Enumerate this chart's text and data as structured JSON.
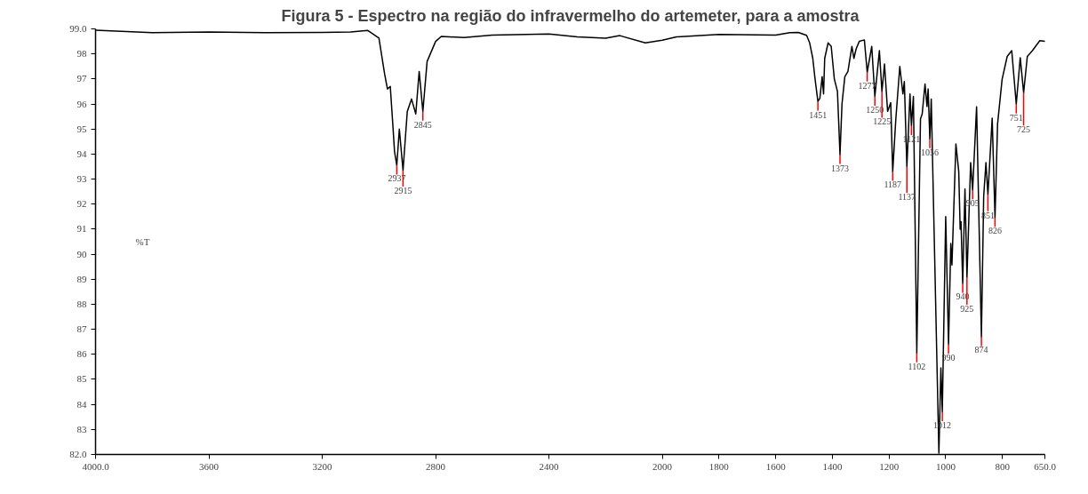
{
  "chart_data": {
    "type": "line",
    "title": "Figura 5 - Espectro na região do infravermelho do artemeter, para a amostra",
    "ylabel": "%T",
    "xlim": [
      4000,
      650
    ],
    "ylim": [
      82,
      99
    ],
    "xticks": [
      {
        "value": 4000,
        "label": "4000.0"
      },
      3600,
      3200,
      2800,
      2400,
      2000,
      1800,
      1600,
      1400,
      1200,
      1000,
      800,
      {
        "value": 650,
        "label": "650.0"
      }
    ],
    "yticks": [
      {
        "value": 82,
        "label": "82.0"
      },
      83,
      84,
      85,
      86,
      87,
      88,
      89,
      90,
      91,
      92,
      93,
      94,
      95,
      96,
      97,
      98,
      {
        "value": 99,
        "label": "99.0"
      }
    ],
    "grid": false,
    "marker": "none",
    "line_style": "solid",
    "series": [
      {
        "color": "#000000",
        "x": [
          4000,
          3800,
          3600,
          3400,
          3200,
          3100,
          3040,
          3000,
          2980,
          2970,
          2960,
          2950,
          2945,
          2937,
          2928,
          2915,
          2900,
          2885,
          2870,
          2858,
          2845,
          2830,
          2800,
          2780,
          2700,
          2600,
          2400,
          2300,
          2200,
          2150,
          2060,
          2000,
          1950,
          1800,
          1600,
          1550,
          1520,
          1491,
          1480,
          1469,
          1462,
          1451,
          1444,
          1436,
          1431,
          1427,
          1415,
          1404,
          1393,
          1382,
          1373,
          1366,
          1356,
          1345,
          1331,
          1324,
          1316,
          1305,
          1287,
          1277,
          1261,
          1250,
          1234,
          1225,
          1216,
          1205,
          1194,
          1187,
          1176,
          1162,
          1151,
          1146,
          1137,
          1126,
          1121,
          1114,
          1102,
          1089,
          1083,
          1073,
          1066,
          1062,
          1056,
          1051,
          1024,
          1017,
          1012,
          1000,
          990,
          982,
          978,
          964,
          954,
          949,
          946,
          940,
          932,
          925,
          912,
          905,
          891,
          874,
          866,
          858,
          851,
          836,
          826,
          817,
          801,
          783,
          767,
          751,
          737,
          725,
          712,
          694,
          668,
          650
        ],
        "values": [
          98.95,
          98.85,
          98.88,
          98.85,
          98.86,
          98.88,
          98.94,
          98.63,
          97.2,
          96.6,
          96.7,
          95.0,
          94.1,
          93.55,
          95.0,
          93.35,
          95.7,
          96.2,
          95.6,
          97.3,
          95.7,
          97.7,
          98.5,
          98.7,
          98.65,
          98.75,
          98.8,
          98.68,
          98.63,
          98.73,
          98.44,
          98.55,
          98.68,
          98.78,
          98.75,
          98.85,
          98.86,
          98.74,
          98.44,
          97.82,
          97.09,
          96.1,
          96.23,
          97.09,
          96.4,
          97.82,
          98.44,
          98.3,
          97.0,
          96.5,
          93.97,
          96.0,
          97.09,
          97.3,
          98.3,
          97.82,
          98.2,
          98.5,
          98.56,
          97.27,
          98.3,
          96.3,
          98.13,
          96.5,
          97.6,
          95.7,
          96.05,
          93.3,
          95.4,
          97.5,
          96.4,
          96.9,
          93.5,
          96.4,
          95.13,
          96.3,
          86.05,
          95.4,
          95.6,
          96.8,
          95.9,
          96.6,
          94.6,
          96.2,
          82.05,
          85.46,
          83.7,
          91.5,
          86.4,
          90.43,
          89.57,
          94.4,
          93.3,
          91.0,
          91.3,
          88.83,
          92.6,
          89.08,
          93.66,
          92.56,
          95.89,
          86.7,
          92.3,
          93.66,
          92.38,
          95.43,
          91.46,
          95.2,
          96.98,
          97.9,
          98.13,
          95.99,
          97.85,
          96.45,
          97.9,
          98.13,
          98.53,
          98.5
        ]
      }
    ],
    "annotations": [
      {
        "text": "2937",
        "x": 2937,
        "y": 93.55
      },
      {
        "text": "2915",
        "x": 2915,
        "y": 93.35
      },
      {
        "text": "2845",
        "x": 2845,
        "y": 95.7
      },
      {
        "text": "1451",
        "x": 1451,
        "y": 96.1
      },
      {
        "text": "1373",
        "x": 1373,
        "y": 93.97
      },
      {
        "text": "1277",
        "x": 1277,
        "y": 97.27
      },
      {
        "text": "1250",
        "x": 1250,
        "y": 96.3
      },
      {
        "text": "1225",
        "x": 1225,
        "y": 96.5
      },
      {
        "text": "1187",
        "x": 1187,
        "y": 93.3
      },
      {
        "text": "1137",
        "x": 1137,
        "y": 93.5
      },
      {
        "text": "1121",
        "x": 1121,
        "y": 95.13
      },
      {
        "text": "1102",
        "x": 1102,
        "y": 86.05
      },
      {
        "text": "1056",
        "x": 1056,
        "y": 94.6
      },
      {
        "text": "1012",
        "x": 1012,
        "y": 83.7
      },
      {
        "text": "990",
        "x": 990,
        "y": 86.4
      },
      {
        "text": "940",
        "x": 940,
        "y": 88.83
      },
      {
        "text": "925",
        "x": 925,
        "y": 89.08
      },
      {
        "text": "905",
        "x": 905,
        "y": 92.56
      },
      {
        "text": "874",
        "x": 874,
        "y": 86.7
      },
      {
        "text": "851",
        "x": 851,
        "y": 92.38
      },
      {
        "text": "826",
        "x": 826,
        "y": 91.46
      },
      {
        "text": "751",
        "x": 751,
        "y": 95.99
      },
      {
        "text": "725",
        "x": 725,
        "y": 96.45
      }
    ]
  }
}
